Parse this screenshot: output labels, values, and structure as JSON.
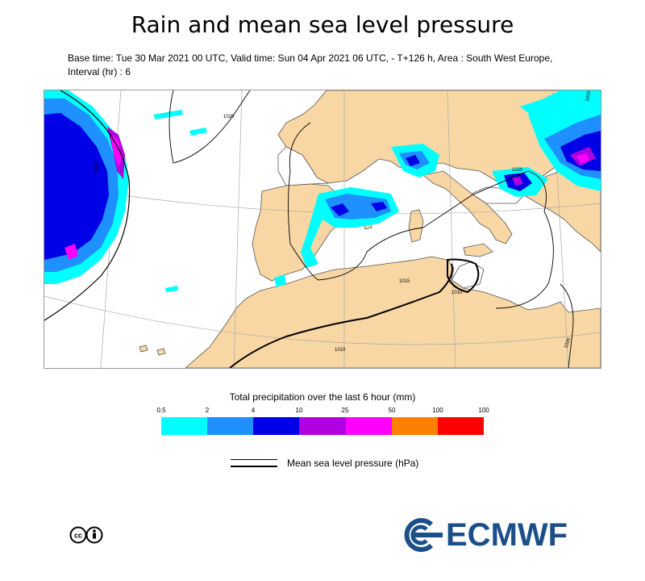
{
  "title": "Rain and mean sea level pressure",
  "subtitle": "Base time: Tue 30 Mar 2021 00 UTC, Valid time: Sun 04 Apr 2021 06 UTC, - T+126 h, Area : South West Europe, Interval (hr) : 6",
  "map": {
    "isobar_labels": [
      "1020",
      "1020",
      "1020",
      "1015",
      "1010",
      "1010",
      "1020",
      "1020"
    ],
    "land_color": "#f8d7a4",
    "sea_color": "#ffffff",
    "rain_colors": [
      "#00ffff",
      "#1e90ff",
      "#0000e6",
      "#b000e0",
      "#ff00ff"
    ]
  },
  "legend": {
    "title": "Total precipitation over the last 6 hour (mm)",
    "ticks": [
      "0.5",
      "2",
      "4",
      "10",
      "25",
      "50",
      "100",
      "100"
    ],
    "colors": [
      "#00ffff",
      "#1e90ff",
      "#0000e6",
      "#b000e0",
      "#ff00ff",
      "#ff8000",
      "#ff0000"
    ],
    "isobar_label": "Mean sea level pressure (hPa)"
  },
  "footer": {
    "license_icon": "cc-by-icon",
    "logo_text": "ECMWF",
    "logo_color": "#1b4f8a"
  }
}
